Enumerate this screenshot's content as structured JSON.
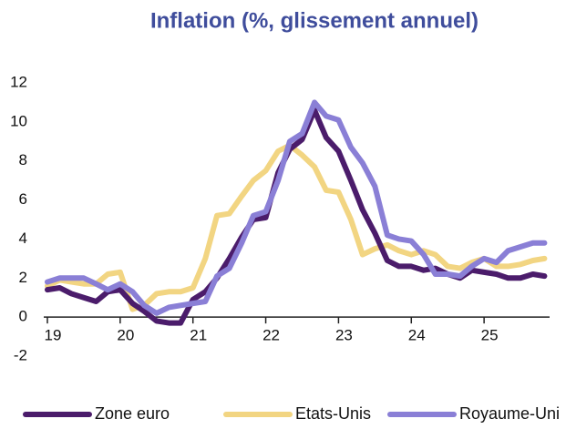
{
  "chart_data": {
    "type": "line",
    "title": "Inflation (%, glissement annuel)",
    "x": [
      19,
      19.17,
      19.33,
      19.5,
      19.67,
      19.83,
      20,
      20.17,
      20.33,
      20.5,
      20.67,
      20.83,
      21,
      21.17,
      21.33,
      21.5,
      21.67,
      21.83,
      22,
      22.17,
      22.33,
      22.5,
      22.67,
      22.83,
      23,
      23.17,
      23.33,
      23.5,
      23.67,
      23.83,
      24,
      24.17,
      24.33,
      24.5,
      24.67,
      24.83,
      25,
      25.17,
      25.33,
      25.5,
      25.67,
      25.83
    ],
    "series": [
      {
        "name": "Zone euro",
        "color": "#4b1c6b",
        "values": [
          1.4,
          1.5,
          1.2,
          1.0,
          0.8,
          1.3,
          1.4,
          0.7,
          0.3,
          -0.2,
          -0.3,
          -0.3,
          0.9,
          1.3,
          2.0,
          3.0,
          4.1,
          5.0,
          5.1,
          7.4,
          8.6,
          9.1,
          10.6,
          9.2,
          8.5,
          7.0,
          5.5,
          4.3,
          2.9,
          2.6,
          2.6,
          2.4,
          2.5,
          2.2,
          2.0,
          2.4,
          2.3,
          2.2,
          2.0,
          2.0,
          2.2,
          2.1
        ]
      },
      {
        "name": "Etats-Unis",
        "color": "#f2d582",
        "values": [
          1.6,
          1.9,
          1.8,
          1.7,
          1.7,
          2.2,
          2.3,
          0.4,
          0.6,
          1.2,
          1.3,
          1.3,
          1.5,
          3.0,
          5.2,
          5.3,
          6.2,
          7.0,
          7.5,
          8.5,
          8.8,
          8.3,
          7.7,
          6.5,
          6.4,
          5.0,
          3.2,
          3.5,
          3.7,
          3.4,
          3.2,
          3.4,
          3.2,
          2.6,
          2.5,
          2.8,
          3.0,
          2.6,
          2.6,
          2.7,
          2.9,
          3.0
        ]
      },
      {
        "name": "Royaume-Uni",
        "color": "#8a7fd6",
        "values": [
          1.8,
          2.0,
          2.0,
          2.0,
          1.7,
          1.4,
          1.7,
          1.3,
          0.6,
          0.2,
          0.5,
          0.6,
          0.7,
          0.8,
          2.1,
          2.5,
          3.8,
          5.2,
          5.4,
          7.0,
          9.0,
          9.4,
          11.0,
          10.3,
          10.1,
          8.7,
          7.9,
          6.7,
          4.2,
          4.0,
          3.9,
          3.2,
          2.2,
          2.2,
          2.1,
          2.6,
          3.0,
          2.8,
          3.4,
          3.6,
          3.8,
          3.8
        ]
      }
    ],
    "xlim": [
      18.95,
      25.9
    ],
    "xticks": [
      19,
      20,
      21,
      22,
      23,
      24,
      25
    ],
    "ylim": [
      -2,
      12
    ],
    "yticks": [
      -2,
      0,
      2,
      4,
      6,
      8,
      10,
      12
    ]
  }
}
